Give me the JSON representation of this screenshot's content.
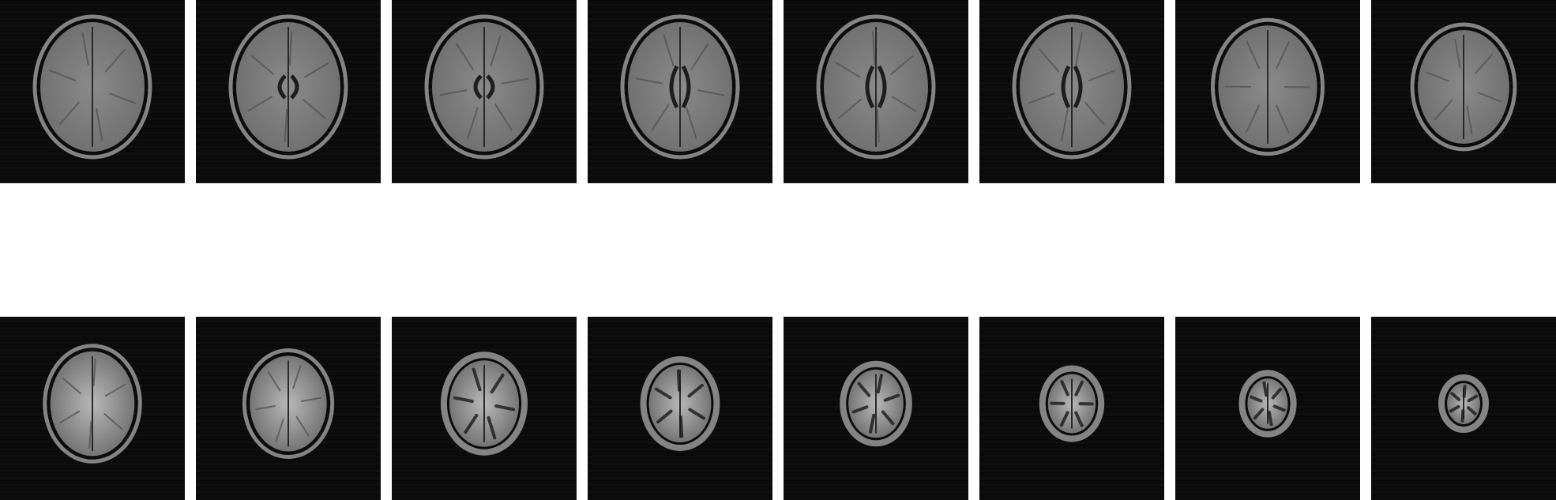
{
  "figure": {
    "description_free": true,
    "rows": 2,
    "columns": 8,
    "slices": [
      {
        "row": 0,
        "index": 1,
        "level": 1
      },
      {
        "row": 0,
        "index": 2,
        "level": 2
      },
      {
        "row": 0,
        "index": 3,
        "level": 3
      },
      {
        "row": 0,
        "index": 4,
        "level": 4
      },
      {
        "row": 0,
        "index": 5,
        "level": 5
      },
      {
        "row": 0,
        "index": 6,
        "level": 6
      },
      {
        "row": 0,
        "index": 7,
        "level": 7
      },
      {
        "row": 0,
        "index": 8,
        "level": 8
      },
      {
        "row": 1,
        "index": 9,
        "level": 9
      },
      {
        "row": 1,
        "index": 10,
        "level": 10
      },
      {
        "row": 1,
        "index": 11,
        "level": 11
      },
      {
        "row": 1,
        "index": 12,
        "level": 12
      },
      {
        "row": 1,
        "index": 13,
        "level": 13
      },
      {
        "row": 1,
        "index": 14,
        "level": 14
      },
      {
        "row": 1,
        "index": 15,
        "level": 15
      },
      {
        "row": 1,
        "index": 16,
        "level": 16
      }
    ],
    "colors": {
      "background": "#ffffff",
      "tile": "#0b0b0b",
      "skull_ring": "#9a9a9a",
      "brain": "#6f6f6f",
      "brain_bright": "#b8b8b8",
      "ventricle": "#1e1e1e"
    }
  }
}
